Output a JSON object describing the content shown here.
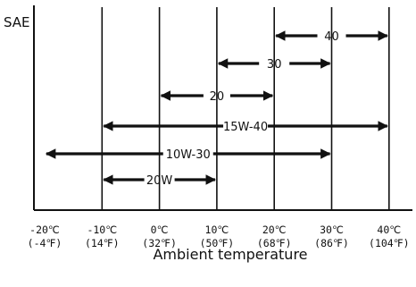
{
  "diagram": {
    "y_label": "SAE",
    "x_title": "Ambient temperature",
    "ticks": [
      {
        "c": "-20℃",
        "f": "(-4℉)"
      },
      {
        "c": "-10℃",
        "f": "(14℉)"
      },
      {
        "c": "0℃",
        "f": "(32℉)"
      },
      {
        "c": "10℃",
        "f": "(50℉)"
      },
      {
        "c": "20℃",
        "f": "(68℉)"
      },
      {
        "c": "30℃",
        "f": "(86℉)"
      },
      {
        "c": "40℃",
        "f": "(104℉)"
      }
    ],
    "grades": [
      {
        "label": "40",
        "from_c": 20,
        "to_c": 40
      },
      {
        "label": "30",
        "from_c": 10,
        "to_c": 30
      },
      {
        "label": "20",
        "from_c": 0,
        "to_c": 20
      },
      {
        "label": "15W-40",
        "from_c": -10,
        "to_c": 40
      },
      {
        "label": "10W-30",
        "from_c": -20,
        "to_c": 30
      },
      {
        "label": "20W",
        "from_c": -10,
        "to_c": 10
      }
    ]
  }
}
